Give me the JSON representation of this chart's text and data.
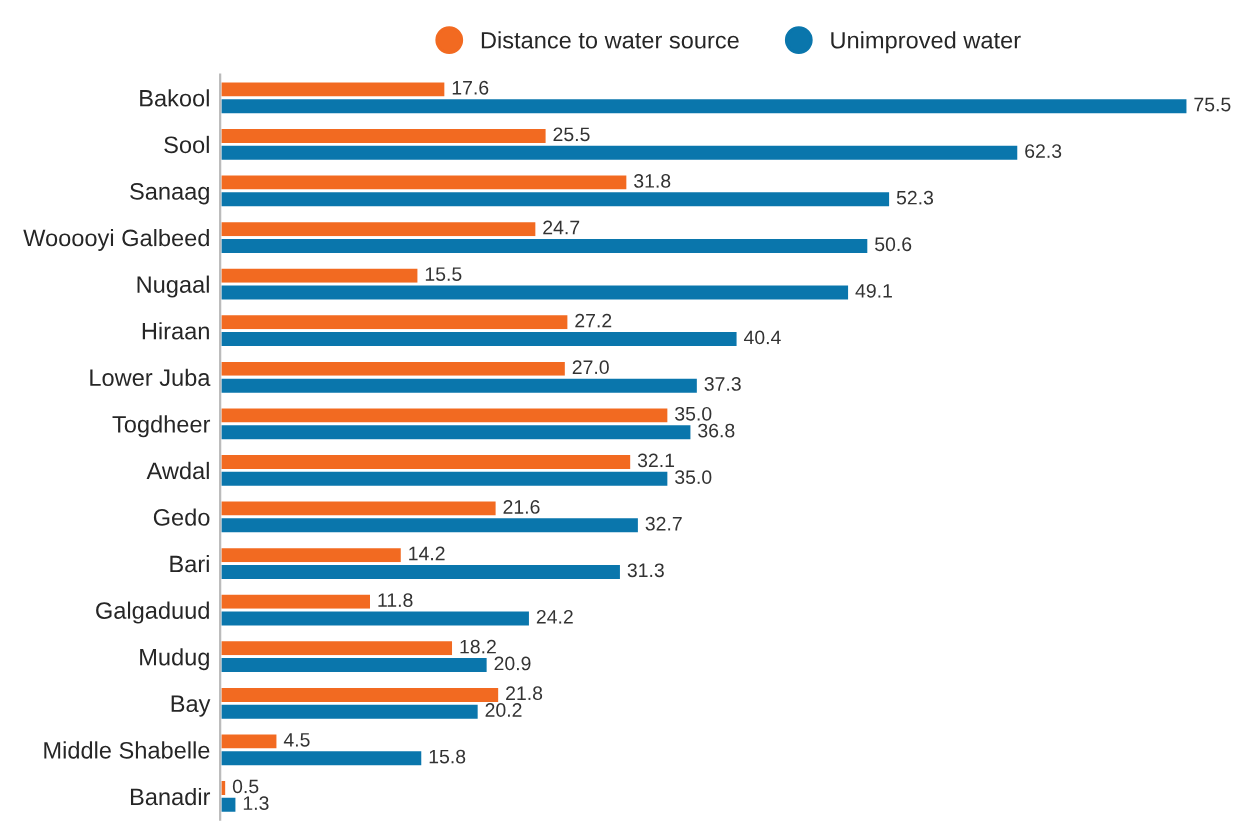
{
  "chart_data": {
    "type": "bar",
    "orientation": "horizontal",
    "categories": [
      "Bakool",
      "Sool",
      "Sanaag",
      "Wooooyi Galbeed",
      "Nugaal",
      "Hiraan",
      "Lower Juba",
      "Togdheer",
      "Awdal",
      "Gedo",
      "Bari",
      "Galgaduud",
      "Mudug",
      "Bay",
      "Middle Shabelle",
      "Banadir"
    ],
    "series": [
      {
        "name": "Distance to water source",
        "color": "#f26a21",
        "values": [
          17.6,
          25.5,
          31.8,
          24.7,
          15.5,
          27.2,
          27.0,
          35.0,
          32.1,
          21.6,
          14.2,
          11.8,
          18.2,
          21.8,
          4.5,
          0.5
        ],
        "value_labels": [
          "17.6",
          "25.5",
          "31.8",
          "24.7",
          "15.5",
          "27.2",
          "27.0",
          "35.0",
          "32.1",
          "21.6",
          "14.2",
          "11.8",
          "18.2",
          "21.8",
          "4.5",
          "0.5"
        ]
      },
      {
        "name": "Unimproved water",
        "color": "#0a76ac",
        "values": [
          75.5,
          62.3,
          52.3,
          50.6,
          49.1,
          40.4,
          37.3,
          36.8,
          35.0,
          32.7,
          31.3,
          24.2,
          20.9,
          20.2,
          15.8,
          1.3
        ],
        "value_labels": [
          "75.5",
          "62.3",
          "52.3",
          "50.6",
          "49.1",
          "40.4",
          "37.3",
          "36.8",
          "35.0",
          "32.7",
          "31.3",
          "24.2",
          "20.9",
          "20.2",
          "15.8",
          "1.3"
        ]
      }
    ],
    "legend": "top",
    "grid": false
  }
}
